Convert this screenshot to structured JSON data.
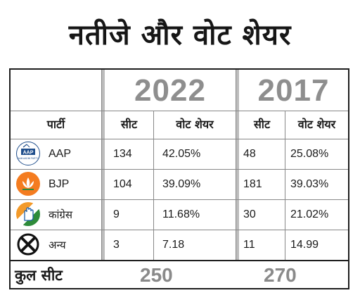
{
  "title": "नतीजे और वोट शेयर",
  "years": [
    "2022",
    "2017"
  ],
  "headers": {
    "party": "पार्टी",
    "seats": "सीट",
    "vote_share": "वोट शेयर"
  },
  "logos": {
    "aap": {
      "icon": "broom-aap-logo-icon",
      "text_top": "AAP",
      "text_bottom": "AAM AADMI PARTY",
      "color": "#1f4e8c"
    },
    "bjp": {
      "icon": "lotus-icon",
      "color": "#f47c20"
    },
    "congress": {
      "icon": "hand-icon",
      "colors": [
        "#f39a2a",
        "#ffffff",
        "#2e8b3a"
      ]
    },
    "others": {
      "icon": "ballot-cross-icon",
      "color": "#111111"
    }
  },
  "rows": [
    {
      "party": "AAP",
      "seats_2022": "134",
      "vote_2022": "42.05%",
      "seats_2017": "48",
      "vote_2017": "25.08%"
    },
    {
      "party": "BJP",
      "seats_2022": "104",
      "vote_2022": "39.09%",
      "seats_2017": "181",
      "vote_2017": "39.03%"
    },
    {
      "party": "कांग्रेस",
      "seats_2022": "9",
      "vote_2022": "11.68%",
      "seats_2017": "30",
      "vote_2017": "21.02%"
    },
    {
      "party": "अन्य",
      "seats_2022": "3",
      "vote_2022": "7.18",
      "seats_2017": "11",
      "vote_2017": "14.99"
    }
  ],
  "total": {
    "label": "कुल सीट",
    "value_2022": "250",
    "value_2017": "270"
  },
  "colors": {
    "year_text": "#8e8e8e",
    "border": "#1e1e1e",
    "divider": "#bdbdbd"
  }
}
